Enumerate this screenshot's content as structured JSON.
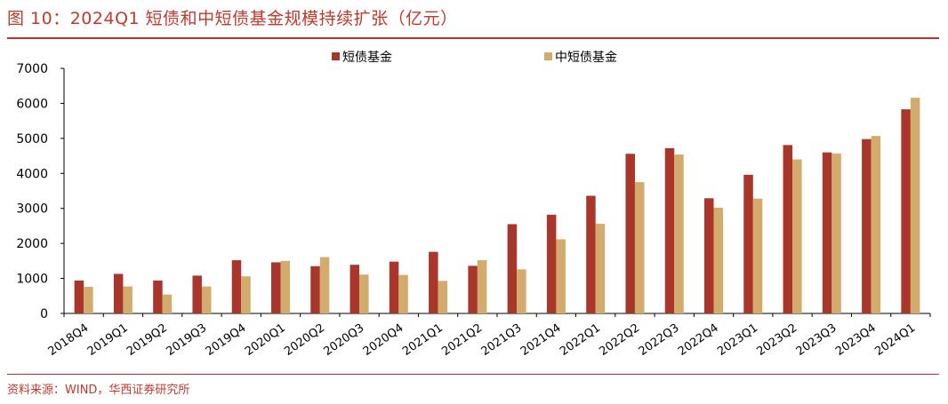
{
  "figure": {
    "title": "图 10：2024Q1 短债和中短债基金规模持续扩张（亿元）",
    "source": "资料来源：WIND，华西证券研究所"
  },
  "colors": {
    "accent": "#b8312f",
    "series_short": "#a8362b",
    "series_mid_short": "#d3ab6c"
  },
  "chart_data": {
    "type": "bar",
    "title": "图 10：2024Q1 短债和中短债基金规模持续扩张（亿元）",
    "xlabel": "",
    "ylabel": "",
    "ylim": [
      0,
      7000
    ],
    "yticks": [
      0,
      1000,
      2000,
      3000,
      4000,
      5000,
      6000,
      7000
    ],
    "grid": false,
    "legend_position": "top",
    "categories": [
      "2018Q4",
      "2019Q1",
      "2019Q2",
      "2019Q3",
      "2019Q4",
      "2020Q1",
      "2020Q2",
      "2020Q3",
      "2020Q4",
      "2021Q1",
      "2021Q2",
      "2021Q3",
      "2021Q4",
      "2022Q1",
      "2022Q2",
      "2022Q3",
      "2022Q4",
      "2023Q1",
      "2023Q2",
      "2023Q3",
      "2023Q4",
      "2024Q1"
    ],
    "series": [
      {
        "name": "短债基金",
        "color": "#a8362b",
        "values": [
          940,
          1130,
          940,
          1080,
          1520,
          1460,
          1350,
          1390,
          1480,
          1760,
          1360,
          2550,
          2820,
          3360,
          4560,
          4720,
          3290,
          3960,
          4810,
          4600,
          4980,
          5830
        ]
      },
      {
        "name": "中短债基金",
        "color": "#d3ab6c",
        "values": [
          760,
          770,
          540,
          770,
          1060,
          1500,
          1610,
          1110,
          1100,
          930,
          1520,
          1260,
          2120,
          2560,
          3750,
          4540,
          3020,
          3280,
          4400,
          4570,
          5070,
          6160
        ]
      }
    ]
  }
}
